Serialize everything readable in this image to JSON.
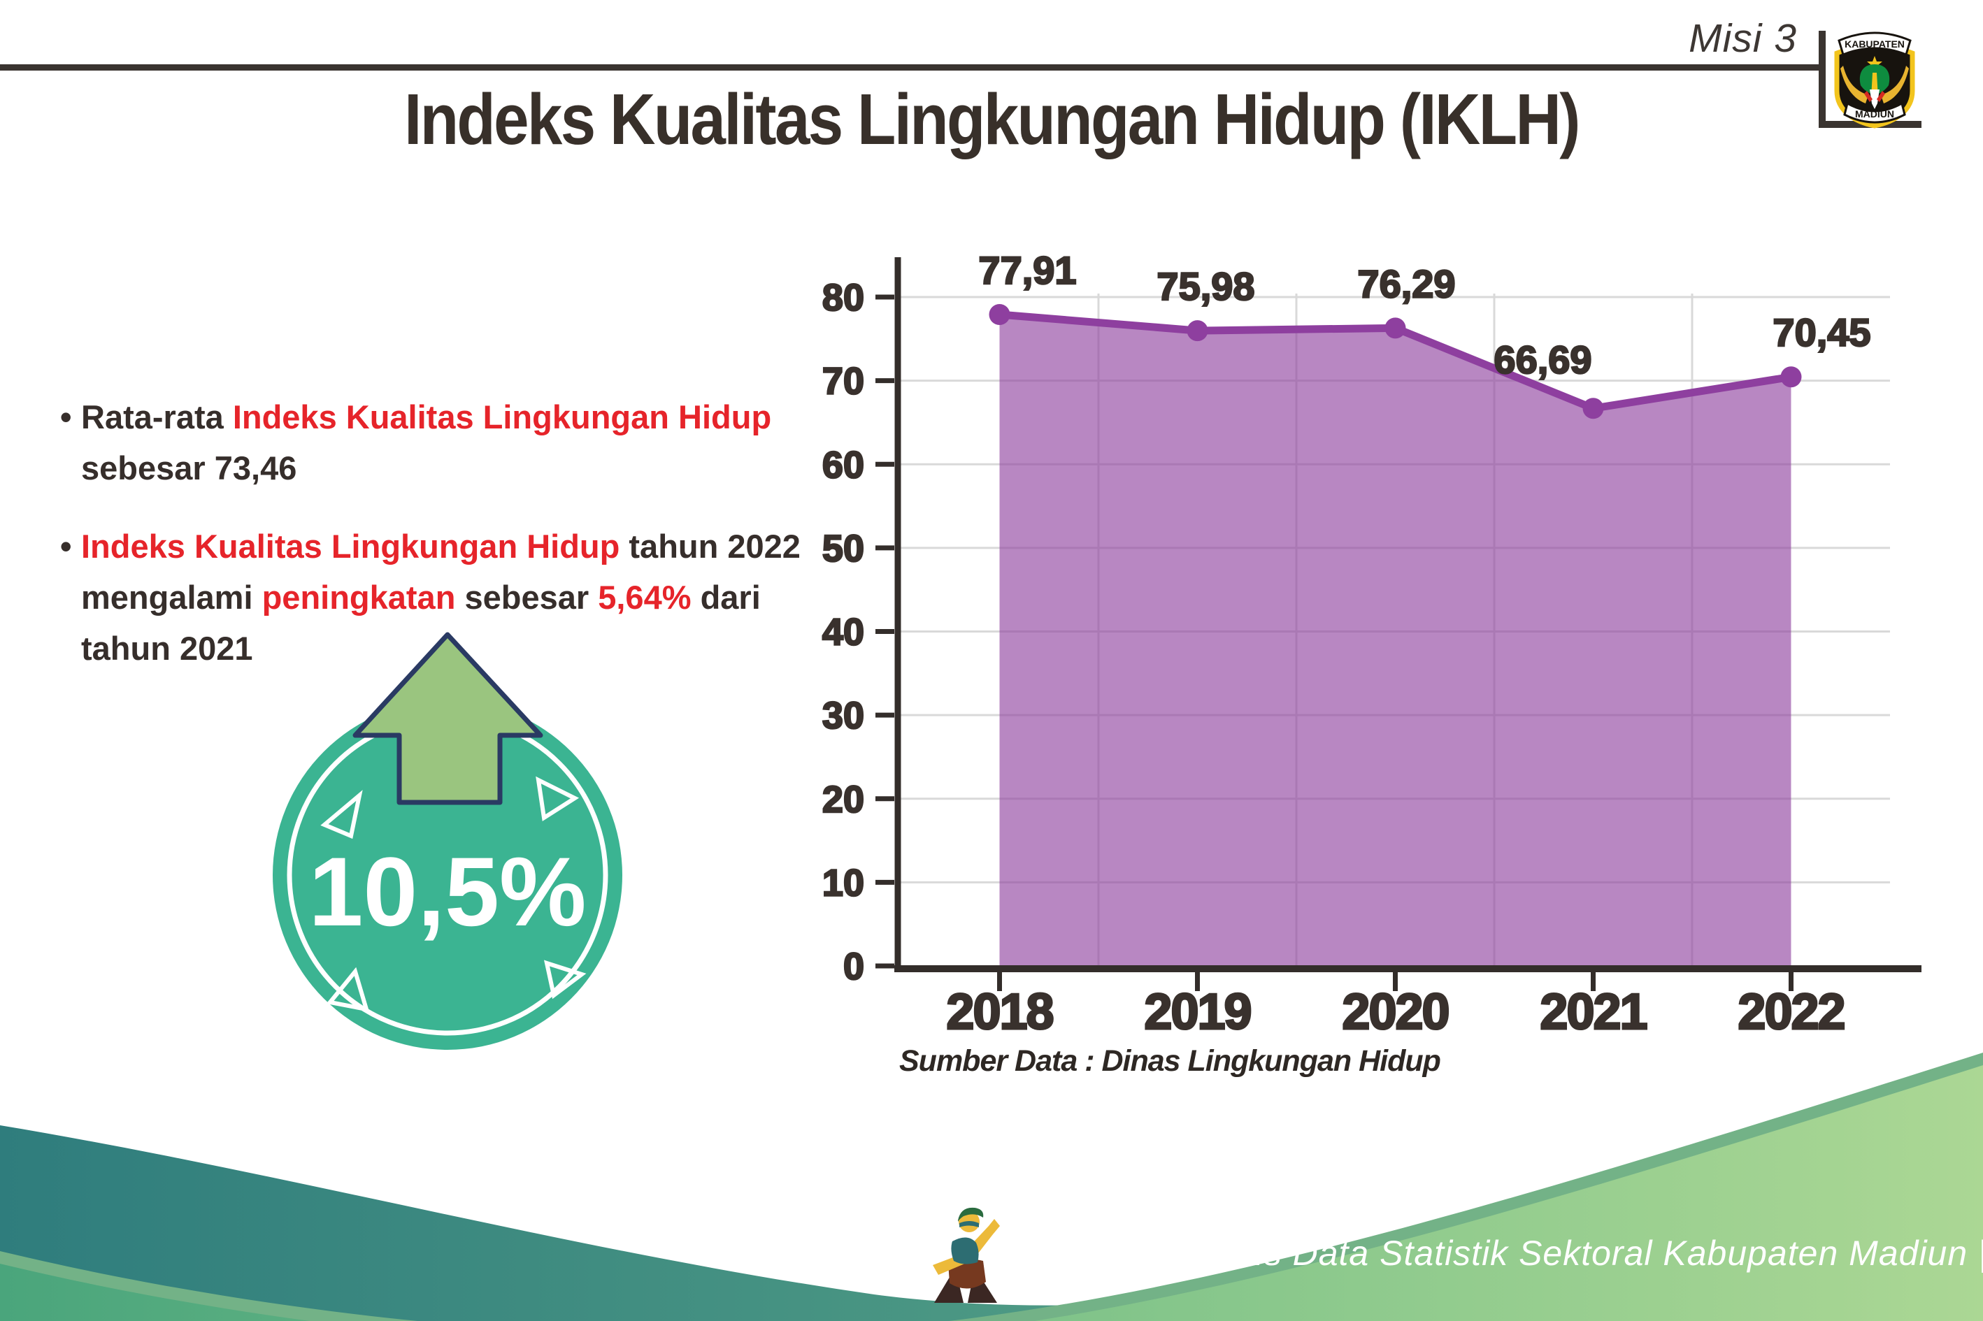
{
  "page": {
    "misi_label": "Misi 3"
  },
  "logo": {
    "top_text": "KABUPATEN",
    "bottom_text": "MADIUN"
  },
  "title": "Indeks Kualitas Lingkungan Hidup (IKLH)",
  "bullets": [
    {
      "segments": [
        {
          "text": "Rata-rata ",
          "color": "dark"
        },
        {
          "text": "Indeks Kualitas Lingkungan Hidup",
          "color": "red"
        },
        {
          "text": " sebesar 73,46",
          "color": "dark"
        }
      ]
    },
    {
      "segments": [
        {
          "text": "Indeks Kualitas Lingkungan Hidup",
          "color": "red"
        },
        {
          "text": " tahun 2022 mengalami ",
          "color": "dark"
        },
        {
          "text": "peningkatan",
          "color": "red"
        },
        {
          "text": " sebesar ",
          "color": "dark"
        },
        {
          "text": "5,64%",
          "color": "red"
        },
        {
          "text": " dari tahun 2021",
          "color": "dark"
        }
      ]
    }
  ],
  "badge": {
    "value_label": "10,5%",
    "arrow_direction": "up"
  },
  "chart_data": {
    "type": "area",
    "categories": [
      "2018",
      "2019",
      "2020",
      "2021",
      "2022"
    ],
    "values": [
      77.91,
      75.98,
      76.29,
      66.69,
      70.45
    ],
    "value_labels": [
      "77,91",
      "75,98",
      "76,29",
      "66,69",
      "70,45"
    ],
    "title": "",
    "xlabel": "",
    "ylabel": "",
    "ylim": [
      0,
      80
    ],
    "ytick_step": 10,
    "grid": true,
    "legend_position": "none",
    "line_color": "#8e3f9f",
    "fill_color": "rgba(141,62,157,0.62)",
    "dot_color": "#8e3f9f",
    "axis_color": "#332d2a",
    "gridline_color": "#d9d9d9",
    "label_color": "#39312d"
  },
  "source_note": "Sumber Data : Dinas Lingkungan Hidup",
  "footer": {
    "caption": "Media Infografis Data Statistik Sektoral Kabupaten Madiun |"
  },
  "colors": {
    "accent_red": "#e6242a",
    "text_dark": "#362e2b",
    "badge_teal": "#3bb492",
    "arrow_green": "#9ac57f",
    "arrow_outline": "#2a3a63",
    "footer_teal": "#2f7d7d",
    "footer_green": "#abd794"
  }
}
